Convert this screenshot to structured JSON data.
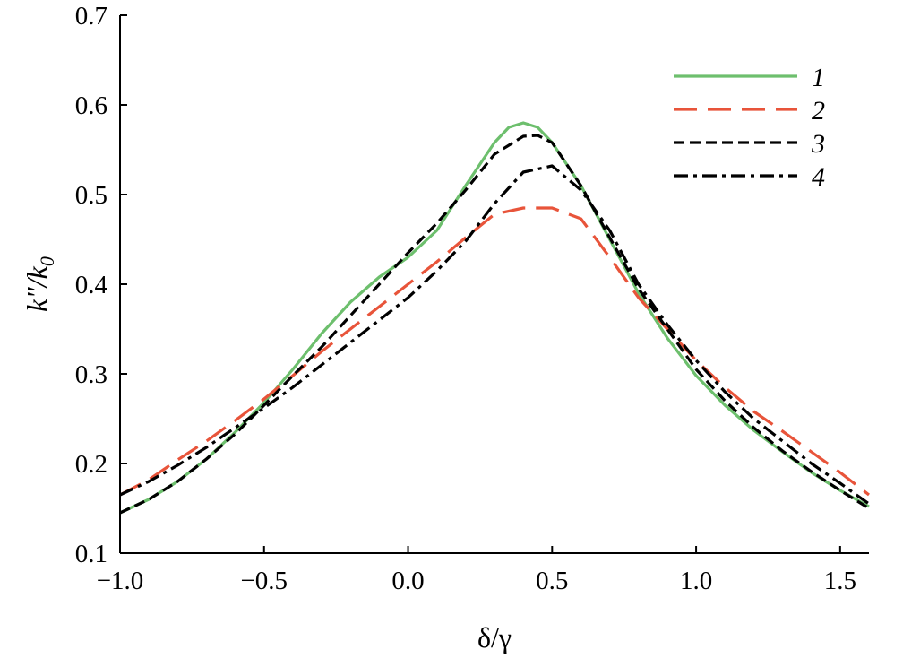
{
  "chart_data": {
    "type": "line",
    "xlabel": "δ/γ",
    "ylabel_main": "k\"/k",
    "ylabel_sub": "0",
    "xlim": [
      -1.0,
      1.6
    ],
    "ylim": [
      0.1,
      0.7
    ],
    "xticks": [
      -1.0,
      -0.5,
      0.0,
      0.5,
      1.0,
      1.5
    ],
    "xtick_labels": [
      "−1.0",
      "−0.5",
      "0.0",
      "0.5",
      "1.0",
      "1.5"
    ],
    "yticks": [
      0.1,
      0.2,
      0.3,
      0.4,
      0.5,
      0.6,
      0.7
    ],
    "ytick_labels": [
      "0.1",
      "0.2",
      "0.3",
      "0.4",
      "0.5",
      "0.6",
      "0.7"
    ],
    "grid": false,
    "legend_position": "top-right",
    "series": [
      {
        "name": "1",
        "color": "#6dbf6d",
        "dash": "solid",
        "points": [
          [
            -1.0,
            0.145
          ],
          [
            -0.9,
            0.16
          ],
          [
            -0.8,
            0.18
          ],
          [
            -0.7,
            0.205
          ],
          [
            -0.6,
            0.235
          ],
          [
            -0.5,
            0.268
          ],
          [
            -0.4,
            0.305
          ],
          [
            -0.3,
            0.345
          ],
          [
            -0.2,
            0.38
          ],
          [
            -0.1,
            0.408
          ],
          [
            0.0,
            0.43
          ],
          [
            0.1,
            0.46
          ],
          [
            0.2,
            0.51
          ],
          [
            0.3,
            0.558
          ],
          [
            0.35,
            0.575
          ],
          [
            0.4,
            0.58
          ],
          [
            0.45,
            0.575
          ],
          [
            0.5,
            0.558
          ],
          [
            0.6,
            0.51
          ],
          [
            0.7,
            0.45
          ],
          [
            0.8,
            0.39
          ],
          [
            0.9,
            0.34
          ],
          [
            1.0,
            0.298
          ],
          [
            1.1,
            0.265
          ],
          [
            1.2,
            0.237
          ],
          [
            1.3,
            0.213
          ],
          [
            1.4,
            0.19
          ],
          [
            1.5,
            0.17
          ],
          [
            1.6,
            0.152
          ]
        ]
      },
      {
        "name": "2",
        "color": "#e8543a",
        "dash": "long-dash",
        "points": [
          [
            -1.0,
            0.165
          ],
          [
            -0.9,
            0.182
          ],
          [
            -0.8,
            0.204
          ],
          [
            -0.7,
            0.225
          ],
          [
            -0.6,
            0.248
          ],
          [
            -0.5,
            0.272
          ],
          [
            -0.4,
            0.298
          ],
          [
            -0.3,
            0.325
          ],
          [
            -0.2,
            0.35
          ],
          [
            -0.1,
            0.375
          ],
          [
            0.0,
            0.4
          ],
          [
            0.1,
            0.425
          ],
          [
            0.2,
            0.452
          ],
          [
            0.3,
            0.478
          ],
          [
            0.4,
            0.485
          ],
          [
            0.5,
            0.485
          ],
          [
            0.6,
            0.473
          ],
          [
            0.7,
            0.43
          ],
          [
            0.8,
            0.385
          ],
          [
            0.9,
            0.35
          ],
          [
            1.0,
            0.315
          ],
          [
            1.1,
            0.285
          ],
          [
            1.2,
            0.258
          ],
          [
            1.3,
            0.236
          ],
          [
            1.4,
            0.213
          ],
          [
            1.5,
            0.19
          ],
          [
            1.6,
            0.165
          ]
        ]
      },
      {
        "name": "3",
        "color": "#000000",
        "dash": "short-dash",
        "points": [
          [
            -1.0,
            0.145
          ],
          [
            -0.9,
            0.16
          ],
          [
            -0.8,
            0.18
          ],
          [
            -0.7,
            0.205
          ],
          [
            -0.6,
            0.233
          ],
          [
            -0.5,
            0.265
          ],
          [
            -0.4,
            0.298
          ],
          [
            -0.3,
            0.33
          ],
          [
            -0.2,
            0.365
          ],
          [
            -0.1,
            0.4
          ],
          [
            0.0,
            0.435
          ],
          [
            0.1,
            0.468
          ],
          [
            0.2,
            0.505
          ],
          [
            0.3,
            0.545
          ],
          [
            0.4,
            0.565
          ],
          [
            0.45,
            0.566
          ],
          [
            0.5,
            0.558
          ],
          [
            0.6,
            0.51
          ],
          [
            0.7,
            0.452
          ],
          [
            0.8,
            0.395
          ],
          [
            0.9,
            0.35
          ],
          [
            1.0,
            0.305
          ],
          [
            1.1,
            0.27
          ],
          [
            1.2,
            0.24
          ],
          [
            1.3,
            0.214
          ],
          [
            1.4,
            0.191
          ],
          [
            1.5,
            0.17
          ],
          [
            1.6,
            0.15
          ]
        ]
      },
      {
        "name": "4",
        "color": "#000000",
        "dash": "dash-dot",
        "points": [
          [
            -1.0,
            0.165
          ],
          [
            -0.9,
            0.18
          ],
          [
            -0.8,
            0.198
          ],
          [
            -0.7,
            0.218
          ],
          [
            -0.6,
            0.24
          ],
          [
            -0.5,
            0.262
          ],
          [
            -0.4,
            0.285
          ],
          [
            -0.3,
            0.31
          ],
          [
            -0.2,
            0.335
          ],
          [
            -0.1,
            0.36
          ],
          [
            0.0,
            0.385
          ],
          [
            0.1,
            0.415
          ],
          [
            0.2,
            0.448
          ],
          [
            0.3,
            0.49
          ],
          [
            0.4,
            0.525
          ],
          [
            0.5,
            0.532
          ],
          [
            0.6,
            0.505
          ],
          [
            0.7,
            0.46
          ],
          [
            0.8,
            0.4
          ],
          [
            0.9,
            0.355
          ],
          [
            1.0,
            0.315
          ],
          [
            1.1,
            0.28
          ],
          [
            1.2,
            0.25
          ],
          [
            1.3,
            0.225
          ],
          [
            1.4,
            0.2
          ],
          [
            1.5,
            0.178
          ],
          [
            1.6,
            0.155
          ]
        ]
      }
    ]
  }
}
